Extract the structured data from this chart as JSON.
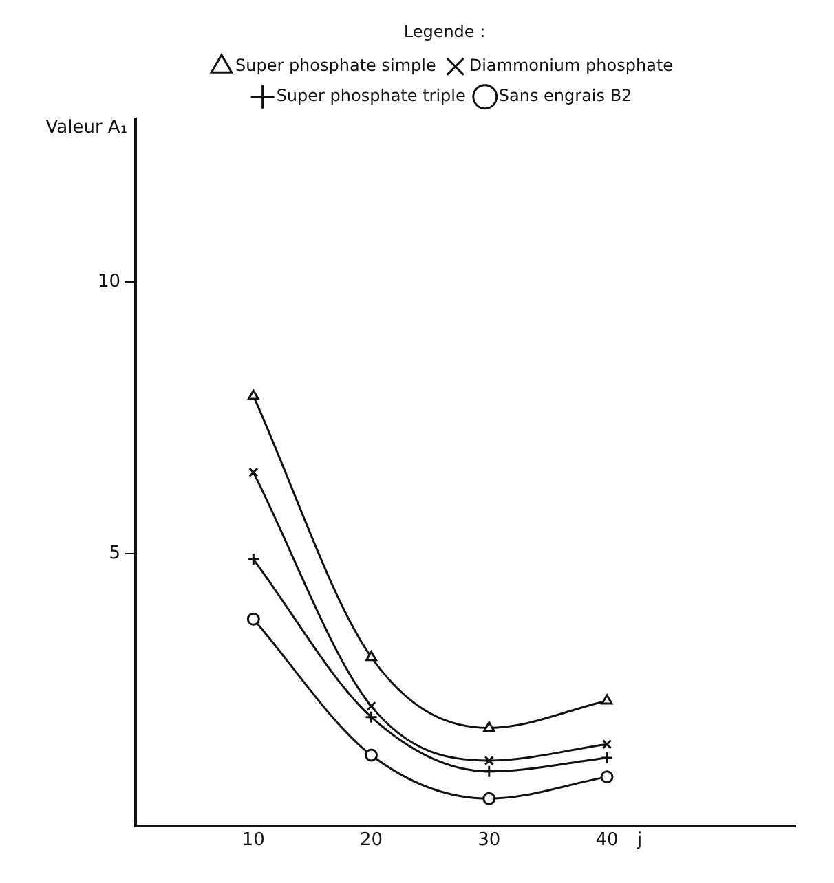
{
  "chart_data": {
    "type": "line",
    "ylabel": "Valeur A₁",
    "xlabel": "j",
    "legend_title": "Legende :",
    "legend": "top",
    "grid": false,
    "line_style": "solid",
    "x": [
      10,
      20,
      30,
      40
    ],
    "xlim": [
      0,
      56
    ],
    "xticks": [
      10,
      20,
      30,
      40
    ],
    "ylim": [
      0,
      13
    ],
    "yticks": [
      5,
      10
    ],
    "series": [
      {
        "name": "Super phosphate simple",
        "color": "#111111",
        "marker": "triangle",
        "values": [
          7.9,
          3.1,
          1.8,
          2.3
        ]
      },
      {
        "name": "Diammonium phosphate",
        "color": "#111111",
        "marker": "x",
        "values": [
          6.5,
          2.2,
          1.2,
          1.5
        ]
      },
      {
        "name": "Super phosphate triple",
        "color": "#111111",
        "marker": "cross",
        "values": [
          4.9,
          2.0,
          1.0,
          1.25
        ]
      },
      {
        "name": "Sans engrais B2",
        "color": "#111111",
        "marker": "circle",
        "values": [
          3.8,
          1.3,
          0.5,
          0.9
        ]
      }
    ]
  }
}
